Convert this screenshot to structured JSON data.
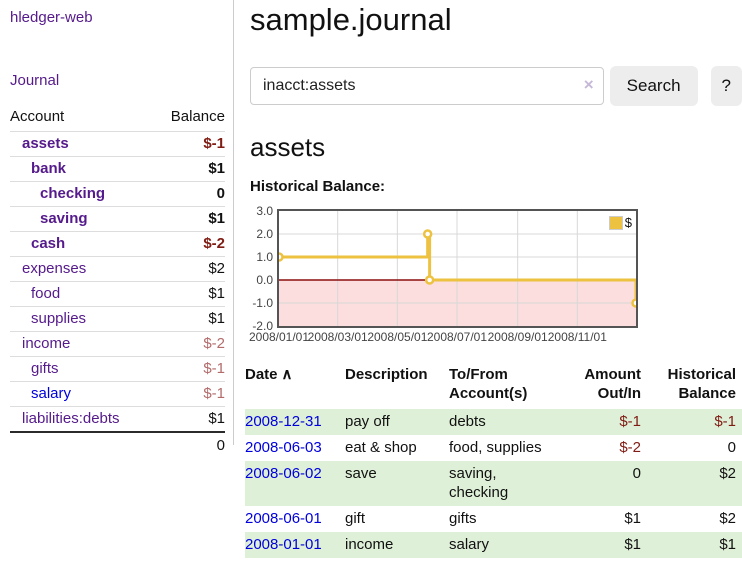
{
  "app": {
    "brand": "hledger-web"
  },
  "sidebar": {
    "nav_journal": "Journal",
    "accounts_header": {
      "account": "Account",
      "balance": "Balance"
    },
    "accounts": [
      {
        "label": "assets",
        "balance": "$-1",
        "depth": 1,
        "bold": true,
        "link": "visited",
        "balance_style": "neg-strong"
      },
      {
        "label": "bank",
        "balance": "$1",
        "depth": 2,
        "bold": true,
        "link": "visited",
        "balance_style": "normal"
      },
      {
        "label": "checking",
        "balance": "0",
        "depth": 3,
        "bold": true,
        "link": "visited",
        "balance_style": "normal"
      },
      {
        "label": "saving",
        "balance": "$1",
        "depth": 3,
        "bold": true,
        "link": "visited",
        "balance_style": "normal"
      },
      {
        "label": "cash",
        "balance": "$-2",
        "depth": 2,
        "bold": true,
        "link": "visited",
        "balance_style": "neg-strong"
      },
      {
        "label": "expenses",
        "balance": "$2",
        "depth": 1,
        "bold": false,
        "link": "visited",
        "balance_style": "normal"
      },
      {
        "label": "food",
        "balance": "$1",
        "depth": 2,
        "bold": false,
        "link": "visited",
        "balance_style": "normal"
      },
      {
        "label": "supplies",
        "balance": "$1",
        "depth": 2,
        "bold": false,
        "link": "visited",
        "balance_style": "normal"
      },
      {
        "label": "income",
        "balance": "$-2",
        "depth": 1,
        "bold": false,
        "link": "visited",
        "balance_style": "neg-muted"
      },
      {
        "label": "gifts",
        "balance": "$-1",
        "depth": 2,
        "bold": false,
        "link": "visited",
        "balance_style": "neg-muted"
      },
      {
        "label": "salary",
        "balance": "$-1",
        "depth": 2,
        "bold": false,
        "link": "unvisited",
        "balance_style": "neg-muted"
      },
      {
        "label": "liabilities:debts",
        "balance": "$1",
        "depth": 1,
        "bold": false,
        "link": "visited",
        "balance_style": "normal"
      }
    ],
    "total": "0"
  },
  "header": {
    "title": "sample.journal"
  },
  "search": {
    "value": "inacct:assets",
    "clear_icon": "×",
    "button": "Search",
    "help_button": "?"
  },
  "account_page": {
    "heading": "assets",
    "chart_label": "Historical Balance:"
  },
  "chart_data": {
    "type": "line",
    "step": true,
    "title": "Historical Balance",
    "series": [
      {
        "name": "$",
        "color": "#edc240",
        "points": [
          [
            "2008-01-01",
            1
          ],
          [
            "2008-06-01",
            2
          ],
          [
            "2008-06-03",
            0
          ],
          [
            "2008-12-31",
            -1
          ]
        ]
      }
    ],
    "xlim": [
      "2008-01-01",
      "2008-12-31"
    ],
    "ylim": [
      -2,
      3
    ],
    "x_ticks": [
      {
        "pos": "2008-01-01",
        "label": "2008/01/01"
      },
      {
        "pos": "2008-03-01",
        "label": "2008/03/01"
      },
      {
        "pos": "2008-05-01",
        "label": "2008/05/01"
      },
      {
        "pos": "2008-07-01",
        "label": "2008/07/01"
      },
      {
        "pos": "2008-09-01",
        "label": "2008/09/01"
      },
      {
        "pos": "2008-11-01",
        "label": "2008/11/01"
      }
    ],
    "y_ticks": [
      {
        "v": 3,
        "label": "3.0"
      },
      {
        "v": 2,
        "label": "2.0"
      },
      {
        "v": 1,
        "label": "1.0"
      },
      {
        "v": 0,
        "label": "0.0"
      },
      {
        "v": -1,
        "label": "-1.0"
      },
      {
        "v": -2,
        "label": "-2.0"
      }
    ],
    "legend": {
      "label": "$",
      "position": "top-right"
    },
    "grid": true,
    "zero_line_color": "#8b0f0f",
    "negative_region_color": "#fcdede",
    "grid_color": "#d8d8d8"
  },
  "transactions": {
    "headers": [
      {
        "key": "date",
        "label_lines": [
          "Date"
        ],
        "sort": "∧",
        "align": "left"
      },
      {
        "key": "description",
        "label_lines": [
          "Description"
        ],
        "align": "left"
      },
      {
        "key": "accounts",
        "label_lines": [
          "To/From",
          "Account(s)"
        ],
        "align": "left"
      },
      {
        "key": "amount",
        "label_lines": [
          "Amount",
          "Out/In"
        ],
        "align": "right"
      },
      {
        "key": "balance",
        "label_lines": [
          "Historical",
          "Balance"
        ],
        "align": "right"
      }
    ],
    "rows": [
      {
        "date": "2008-12-31",
        "description": "pay off",
        "accounts": "debts",
        "amount": "$-1",
        "balance": "$-1"
      },
      {
        "date": "2008-06-03",
        "description": "eat & shop",
        "accounts": "food, supplies",
        "amount": "$-2",
        "balance": "0"
      },
      {
        "date": "2008-06-02",
        "description": "save",
        "accounts": "saving, checking",
        "amount": "0",
        "balance": "$2"
      },
      {
        "date": "2008-06-01",
        "description": "gift",
        "accounts": "gifts",
        "amount": "$1",
        "balance": "$2"
      },
      {
        "date": "2008-01-01",
        "description": "income",
        "accounts": "salary",
        "amount": "$1",
        "balance": "$1"
      }
    ]
  },
  "colors": {
    "visited_link": "#551a8b",
    "unvisited_link": "#0000dd",
    "negative_strong": "#7f1c13",
    "negative_muted": "#b36b6b",
    "row_stripe_green": "#dff0d8",
    "chart_series_gold": "#edc240",
    "chart_border": "#545454"
  }
}
